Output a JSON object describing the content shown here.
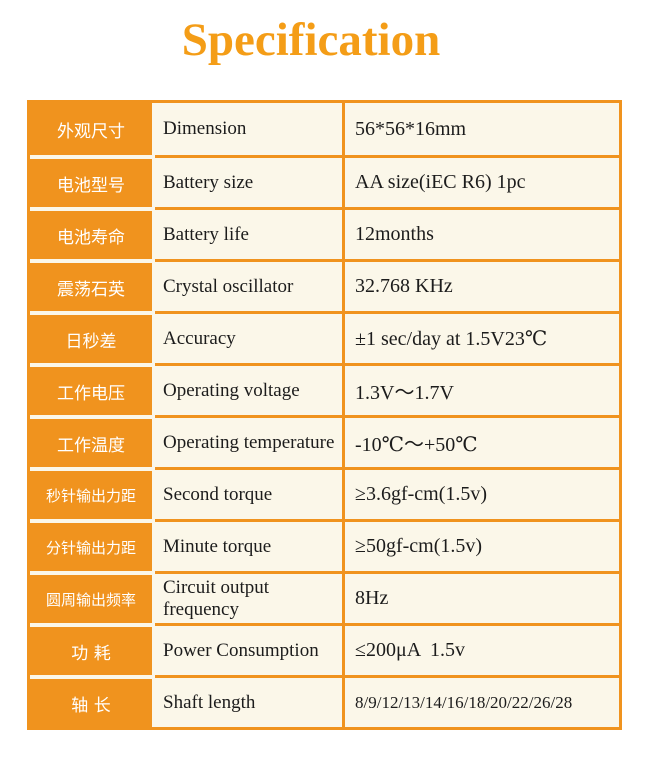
{
  "page": {
    "title": "Specification"
  },
  "colors": {
    "accent_orange": "#F0931E",
    "title_orange": "#F49D17",
    "cell_cream": "#FBF7E9",
    "text_dark": "#1C1C1C",
    "label_text": "#FFFFFF",
    "page_background": "#FFFFFF"
  },
  "table": {
    "columns": [
      "chinese-label",
      "english-label",
      "value"
    ],
    "rows": [
      {
        "cn": "外观尺寸",
        "en": "Dimension",
        "value": "56*56*16mm"
      },
      {
        "cn": "电池型号",
        "en": "Battery size",
        "value": "AA size(iEC R6) 1pc"
      },
      {
        "cn": "电池寿命",
        "en": "Battery life",
        "value": "12months"
      },
      {
        "cn": "震荡石英",
        "en": "Crystal oscillator",
        "value": "32.768 KHz"
      },
      {
        "cn": "日秒差",
        "en": "Accuracy",
        "value": "±1 sec/day at 1.5V23℃"
      },
      {
        "cn": "工作电压",
        "en": "Operating voltage",
        "value": "1.3V～1.7V"
      },
      {
        "cn": "工作温度",
        "en": "Operating temperature",
        "value": "-10℃～+50℃"
      },
      {
        "cn": "秒针输出力距",
        "en": "Second torque",
        "value": "≥3.6gf-cm(1.5v)"
      },
      {
        "cn": "分针输出力距",
        "en": "Minute torque",
        "value": "≥50gf-cm(1.5v)"
      },
      {
        "cn": "圆周输出频率",
        "en": "Circuit output frequency",
        "value": "8Hz"
      },
      {
        "cn": "功 耗",
        "en": "Power Consumption",
        "value": "≤200μA  1.5v"
      },
      {
        "cn": "轴 长",
        "en": "Shaft length",
        "value": "8/9/12/13/14/16/18/20/22/26/28"
      }
    ]
  }
}
